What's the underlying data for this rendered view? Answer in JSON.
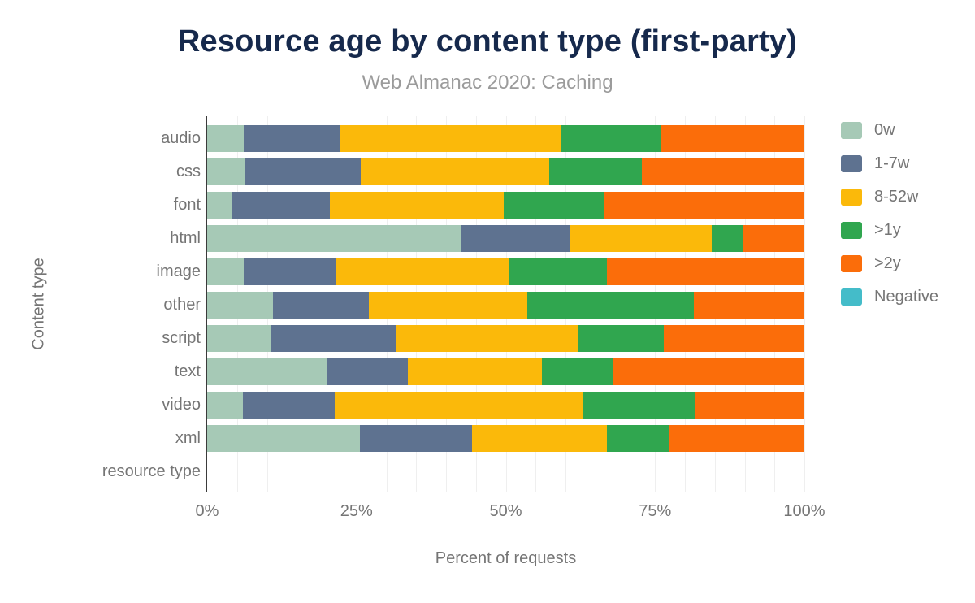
{
  "header": {
    "title": "Resource age by content type (first-party)",
    "subtitle": "Web Almanac 2020: Caching"
  },
  "colors": {
    "title_text": "#16294C",
    "subtitle_text": "#9B9B9B",
    "axis_text": "#757575",
    "axis_line": "#3B3B3B",
    "gridline": "#EFEFEF",
    "background": "#FFFFFF"
  },
  "chart_data": {
    "type": "bar",
    "orientation": "horizontal",
    "stacked": true,
    "title": "Resource age by content type (first-party)",
    "subtitle": "Web Almanac 2020: Caching",
    "xlabel": "Percent of requests",
    "ylabel": "Content type",
    "xlim": [
      0,
      100
    ],
    "x_ticks": [
      "0%",
      "25%",
      "50%",
      "75%",
      "100%"
    ],
    "x_tick_values": [
      0,
      25,
      50,
      75,
      100
    ],
    "grid": "vertical minor gridlines every 5%",
    "legend_position": "right",
    "categories": [
      "audio",
      "css",
      "font",
      "html",
      "image",
      "other",
      "script",
      "text",
      "video",
      "xml",
      "resource type"
    ],
    "series": [
      {
        "name": "0w",
        "color": "#A6C9B6",
        "values": [
          6.1,
          6.4,
          4.1,
          42.6,
          6.1,
          11.0,
          10.7,
          20.2,
          6.0,
          25.6,
          0
        ]
      },
      {
        "name": "1-7w",
        "color": "#5E7290",
        "values": [
          16.1,
          19.3,
          16.5,
          18.2,
          15.5,
          16.1,
          20.8,
          13.4,
          15.3,
          18.7,
          0
        ]
      },
      {
        "name": "8-52w",
        "color": "#FBB90A",
        "values": [
          37.0,
          31.6,
          29.1,
          23.7,
          28.9,
          26.5,
          30.6,
          22.4,
          41.5,
          22.6,
          0
        ]
      },
      {
        "name": ">1y",
        "color": "#30A64F",
        "values": [
          16.8,
          15.5,
          16.7,
          5.3,
          16.4,
          27.9,
          14.3,
          12.0,
          19.0,
          10.5,
          0
        ]
      },
      {
        "name": ">2y",
        "color": "#FB6D0A",
        "values": [
          24.0,
          27.2,
          33.6,
          10.2,
          33.1,
          18.5,
          23.6,
          32.0,
          18.2,
          22.6,
          0
        ]
      },
      {
        "name": "Negative",
        "color": "#44BCC9",
        "values": [
          0,
          0,
          0,
          0,
          0,
          0,
          0,
          0,
          0,
          0,
          0
        ]
      }
    ]
  }
}
